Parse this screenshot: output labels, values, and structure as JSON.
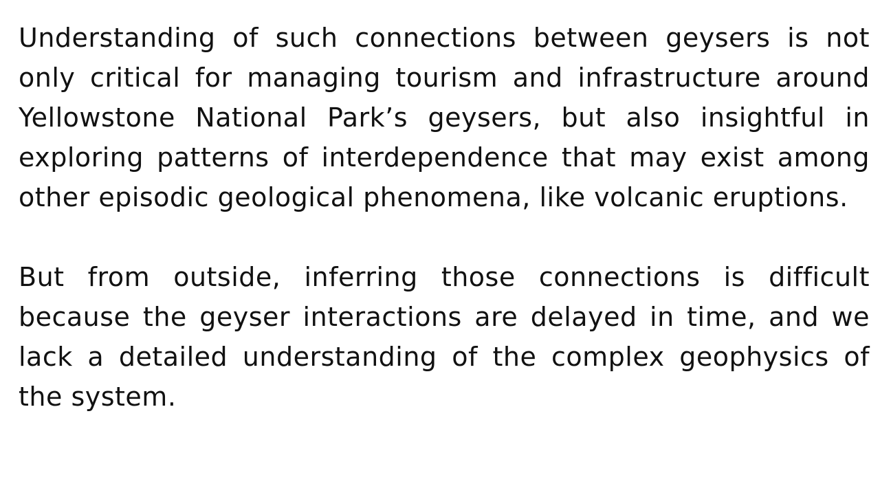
{
  "document": {
    "paragraphs": [
      "Understanding of such connections between geysers is not only critical for managing tourism and infrastructure around Yellowstone National Park’s geysers, but also insightful in exploring patterns of interdependence that may exist among other episodic geological phenomena, like volcanic eruptions.",
      "But from outside, inferring those connections is difficult because the geyser interactions are delayed in time, and we lack a detailed understanding of the complex geophysics of the system."
    ]
  }
}
